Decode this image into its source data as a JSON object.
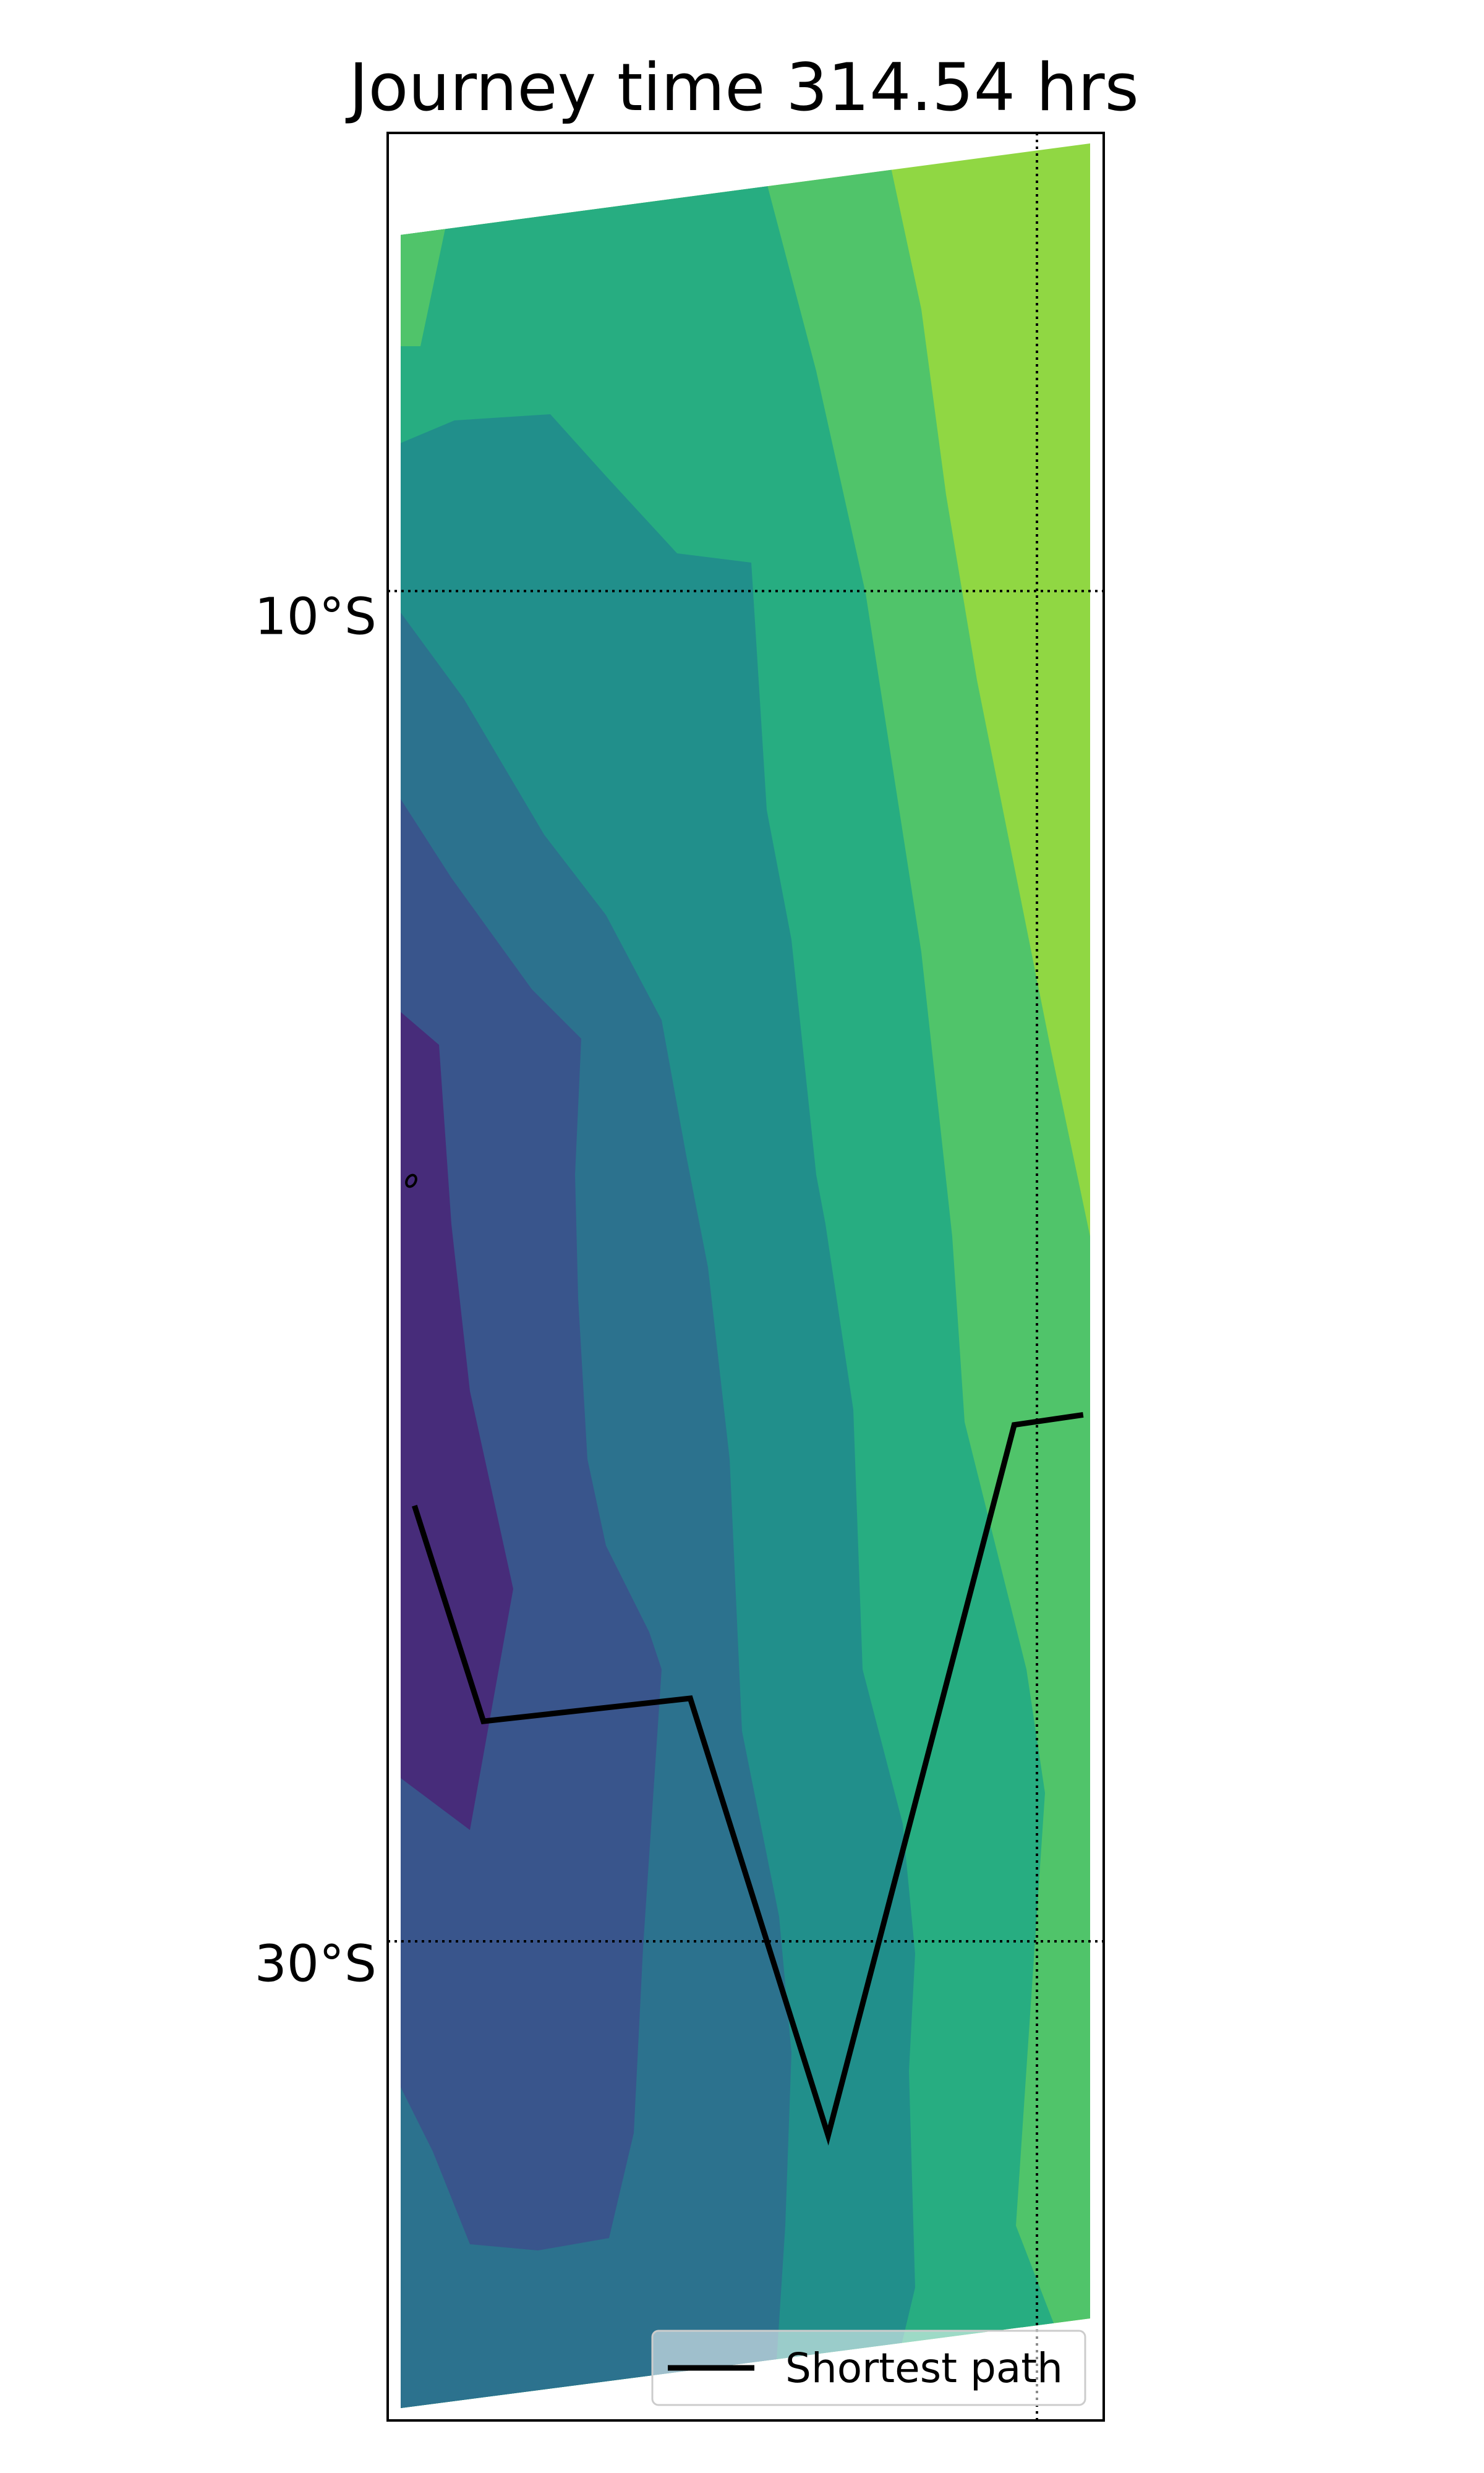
{
  "chart_data": {
    "type": "heatmap",
    "title": "Journey time 314.54 hrs",
    "xlabel": "",
    "ylabel": "",
    "colormap": "viridis",
    "levels": [
      "#472c7a",
      "#39558c",
      "#2c728e",
      "#218f8b",
      "#27ad81",
      "#50c46a",
      "#90d743",
      "#d9e21b"
    ],
    "y_ticks": [
      {
        "value": -10,
        "label": "10°S"
      },
      {
        "value": -30,
        "label": "30°S"
      }
    ],
    "ylim": [
      -36.78,
      -2.82
    ],
    "gridlines": {
      "latitudes": [
        -10,
        -30
      ],
      "meridian_drawn": true,
      "style": "dotted"
    },
    "legend": {
      "entries": [
        "Shortest path"
      ],
      "position": "lower-right"
    },
    "series": [
      {
        "name": "Shortest path",
        "color": "#000000",
        "points": [
          {
            "x": 0.02,
            "lat": -23.2
          },
          {
            "x": 0.12,
            "lat": -26.4
          },
          {
            "x": 0.42,
            "lat": -26.06
          },
          {
            "x": 0.62,
            "lat": -32.55
          },
          {
            "x": 0.89,
            "lat": -22.0
          },
          {
            "x": 0.99,
            "lat": -21.85
          }
        ]
      }
    ]
  }
}
